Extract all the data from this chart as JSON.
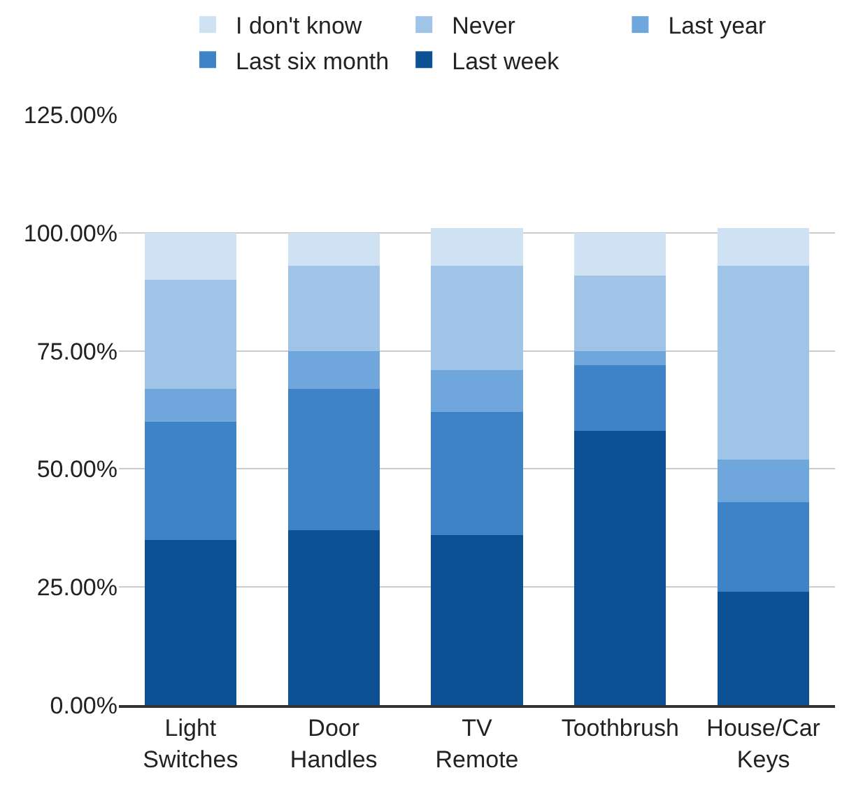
{
  "chart_data": {
    "type": "bar",
    "stacked": true,
    "categories": [
      "Light Switches",
      "Door Handles",
      "TV Remote",
      "Toothbrush",
      "House/Car Keys"
    ],
    "series": [
      {
        "name": "Last week",
        "color": "#0d5195",
        "values": [
          35,
          37,
          36,
          58,
          24
        ]
      },
      {
        "name": "Last six month",
        "color": "#3d83c6",
        "values": [
          25,
          30,
          26,
          14,
          19
        ]
      },
      {
        "name": "Last year",
        "color": "#6fa7dc",
        "values": [
          7,
          8,
          9,
          3,
          9
        ]
      },
      {
        "name": "Never",
        "color": "#9fc4e8",
        "values": [
          23,
          18,
          22,
          16,
          41
        ]
      },
      {
        "name": "I don't know",
        "color": "#cfe2f3",
        "values": [
          10,
          7,
          8,
          9,
          8
        ]
      }
    ],
    "ylim": [
      0,
      125
    ],
    "yticks": [
      {
        "value": 0,
        "label": "0.00%"
      },
      {
        "value": 25,
        "label": "25.00%"
      },
      {
        "value": 50,
        "label": "50.00%"
      },
      {
        "value": 75,
        "label": "75.00%"
      },
      {
        "value": 100,
        "label": "100.00%"
      },
      {
        "value": 125,
        "label": "125.00%"
      }
    ],
    "grid": "y",
    "legend": "top"
  }
}
